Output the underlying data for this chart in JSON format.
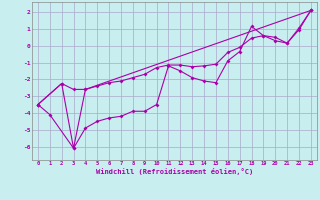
{
  "xlabel": "Windchill (Refroidissement éolien,°C)",
  "bg_color": "#c8eef0",
  "line_color": "#aa00aa",
  "grid_color": "#aaaacc",
  "xlim": [
    -0.5,
    23.5
  ],
  "ylim": [
    -6.8,
    2.6
  ],
  "yticks": [
    -6,
    -5,
    -4,
    -3,
    -2,
    -1,
    0,
    1,
    2
  ],
  "xticks": [
    0,
    1,
    2,
    3,
    4,
    5,
    6,
    7,
    8,
    9,
    10,
    11,
    12,
    13,
    14,
    15,
    16,
    17,
    18,
    19,
    20,
    21,
    22,
    23
  ],
  "series1_x": [
    0,
    1,
    3,
    4,
    5,
    6,
    7,
    8,
    9,
    10,
    11,
    12,
    13,
    14,
    15,
    16,
    17,
    18,
    19,
    20,
    21,
    22,
    23
  ],
  "series1_y": [
    -3.5,
    -4.1,
    -6.1,
    -4.9,
    -4.5,
    -4.3,
    -4.2,
    -3.9,
    -3.9,
    -3.5,
    -1.2,
    -1.5,
    -1.9,
    -2.1,
    -2.2,
    -0.9,
    -0.35,
    1.15,
    0.6,
    0.3,
    0.15,
    1.05,
    2.1
  ],
  "series2_x": [
    0,
    2,
    3,
    4,
    5,
    6,
    7,
    8,
    9,
    10,
    11,
    12,
    13,
    14,
    15,
    16,
    17,
    18,
    19,
    20,
    21,
    22,
    23
  ],
  "series2_y": [
    -3.5,
    -2.25,
    -2.6,
    -2.6,
    -2.4,
    -2.2,
    -2.1,
    -1.9,
    -1.7,
    -1.3,
    -1.15,
    -1.15,
    -1.25,
    -1.2,
    -1.1,
    -0.4,
    -0.1,
    0.45,
    0.6,
    0.5,
    0.15,
    0.95,
    2.1
  ],
  "series3_x": [
    0,
    2,
    3,
    4,
    23
  ],
  "series3_y": [
    -3.5,
    -2.25,
    -6.1,
    -2.6,
    2.1
  ]
}
